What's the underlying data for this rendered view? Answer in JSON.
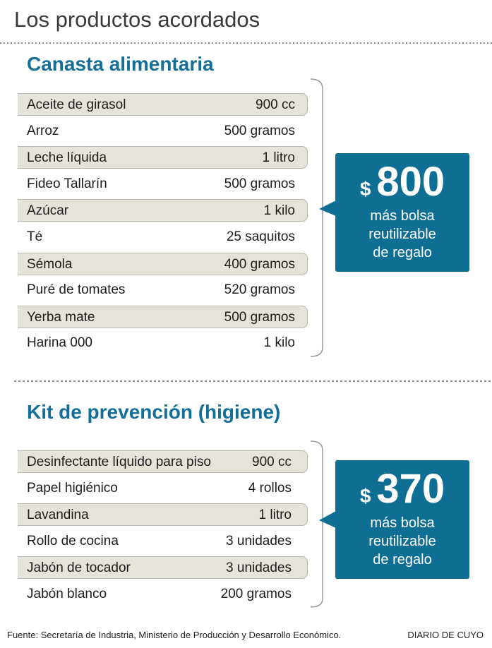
{
  "header": {
    "title": "Los productos acordados"
  },
  "sections": [
    {
      "title": "Canasta alimentaria",
      "items": [
        [
          "Aceite de girasol",
          "900 cc"
        ],
        [
          "Arroz",
          "500 gramos"
        ],
        [
          "Leche líquida",
          "1 litro"
        ],
        [
          "Fideo Tallarín",
          "500 gramos"
        ],
        [
          "Azúcar",
          "1 kilo"
        ],
        [
          "Té",
          "25 saquitos"
        ],
        [
          "Sémola",
          "400 gramos"
        ],
        [
          "Puré de tomates",
          "520 gramos"
        ],
        [
          "Yerba mate",
          "500 gramos"
        ],
        [
          "Harina 000",
          "1 kilo"
        ]
      ],
      "price": {
        "currency": "$",
        "amount": "800",
        "lines": [
          "más bolsa",
          "reutilizable",
          "de regalo"
        ]
      }
    },
    {
      "title": "Kit de prevención (higiene)",
      "items": [
        [
          "Desinfectante líquido para piso",
          "900 cc"
        ],
        [
          "Papel higiénico",
          "4 rollos"
        ],
        [
          "Lavandina",
          "1 litro"
        ],
        [
          "Rollo de cocina",
          "3 unidades"
        ],
        [
          "Jabón de tocador",
          "3 unidades"
        ],
        [
          "Jabón blanco",
          "200 gramos"
        ]
      ],
      "price": {
        "currency": "$",
        "amount": "370",
        "lines": [
          "más bolsa",
          "reutilizable",
          "de regalo"
        ]
      }
    }
  ],
  "footer": {
    "source": "Fuente: Secretaría de Industria, Ministerio de Producción y Desarrollo Económico.",
    "brand": "DIARIO DE CUYO"
  }
}
